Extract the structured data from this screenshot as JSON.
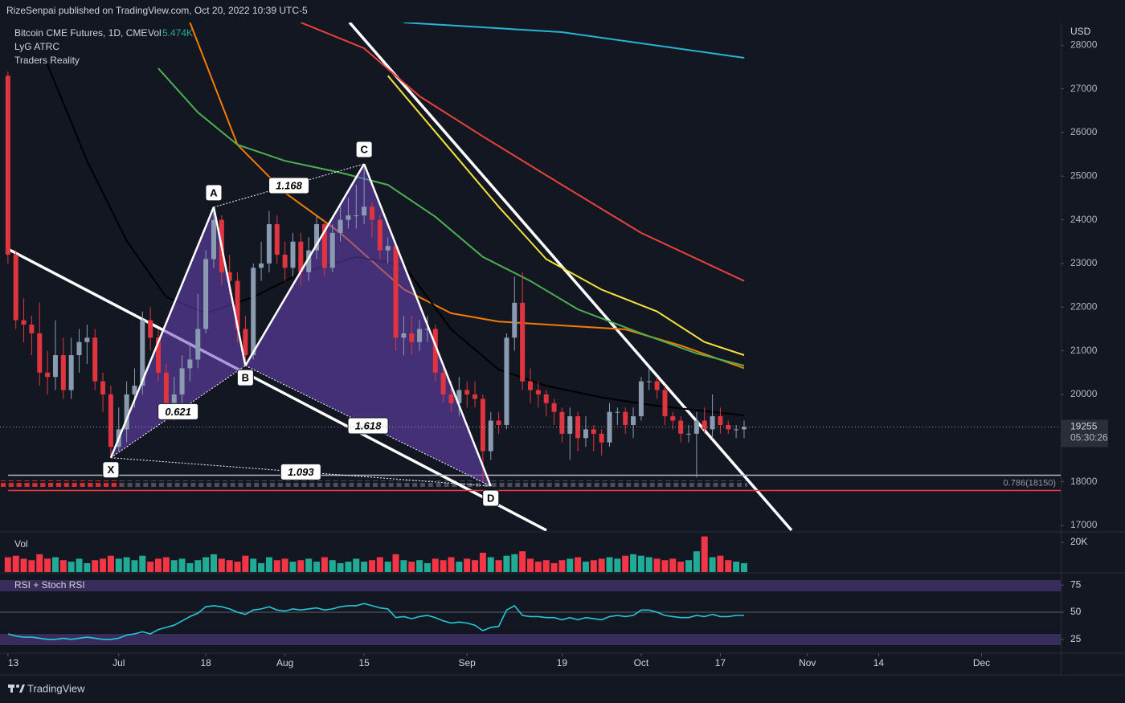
{
  "chart_data": {
    "type": "candlestick",
    "published": "RizeSenpai published on TradingView.com, Oct 20, 2022 10:39 UTC-5",
    "title": "Bitcoin CME Futures, 1D, CME",
    "volume_title": "Vol",
    "volume_last": "5.474K",
    "indicators": [
      "LyG ATRC",
      "Traders Reality"
    ],
    "currency": "USD",
    "countdown": "05:30:26",
    "brand": "TradingView",
    "up_color": "#8a9bb0",
    "down_color": "#e0353f",
    "volume_up_color": "#22ab94",
    "volume_down_color": "#f23645",
    "grid": false,
    "xlim": [
      -1,
      133
    ],
    "xticks": [
      {
        "value": 0,
        "label": "13"
      },
      {
        "value": 14,
        "label": "Jul"
      },
      {
        "value": 25,
        "label": "18"
      },
      {
        "value": 35,
        "label": "Aug"
      },
      {
        "value": 45,
        "label": "15"
      },
      {
        "value": 58,
        "label": "Sep"
      },
      {
        "value": 70,
        "label": "19"
      },
      {
        "value": 80,
        "label": "Oct"
      },
      {
        "value": 90,
        "label": "17"
      },
      {
        "value": 101,
        "label": "Nov"
      },
      {
        "value": 110,
        "label": "14"
      },
      {
        "value": 123,
        "label": "Dec"
      }
    ],
    "ylim": [
      16870,
      28520
    ],
    "yticks": [
      17000,
      18000,
      19000,
      20000,
      21000,
      22000,
      23000,
      24000,
      25000,
      26000,
      27000,
      28000
    ],
    "x": [
      0,
      1,
      2,
      3,
      4,
      5,
      6,
      7,
      8,
      9,
      10,
      11,
      12,
      13,
      14,
      15,
      16,
      17,
      18,
      19,
      20,
      21,
      22,
      23,
      24,
      25,
      26,
      27,
      28,
      29,
      30,
      31,
      32,
      33,
      34,
      35,
      36,
      37,
      38,
      39,
      40,
      41,
      42,
      43,
      44,
      45,
      46,
      47,
      48,
      49,
      50,
      51,
      52,
      53,
      54,
      55,
      56,
      57,
      58,
      59,
      60,
      61,
      62,
      63,
      64,
      65,
      66,
      67,
      68,
      69,
      70,
      71,
      72,
      73,
      74,
      75,
      76,
      77,
      78,
      79,
      80,
      81,
      82,
      83,
      84,
      85,
      86,
      87,
      88,
      89,
      90,
      91,
      92,
      93
    ],
    "open": [
      27300,
      23200,
      21700,
      21600,
      21400,
      20500,
      20400,
      20900,
      20100,
      20900,
      21200,
      21300,
      20300,
      20000,
      18800,
      19200,
      20000,
      20200,
      21700,
      21300,
      20500,
      19800,
      20000,
      20600,
      20800,
      21500,
      23100,
      24000,
      22800,
      22600,
      21500,
      20900,
      22900,
      23000,
      23900,
      23200,
      22900,
      23500,
      22800,
      23300,
      23900,
      22900,
      23700,
      24000,
      24100,
      24100,
      24300,
      24000,
      23300,
      23400,
      21300,
      21400,
      21200,
      21500,
      21500,
      20500,
      20000,
      19800,
      20100,
      20000,
      19900,
      18700,
      19400,
      19300,
      21300,
      22100,
      20300,
      20100,
      20000,
      19800,
      19600,
      19100,
      19500,
      19000,
      19200,
      19100,
      18900,
      19600,
      19600,
      19300,
      19500,
      20300,
      20300,
      20100,
      19500,
      19400,
      19100,
      19100,
      19400,
      19200,
      19500,
      19300,
      19200,
      19200
    ],
    "high": [
      27400,
      23300,
      22200,
      21800,
      22100,
      21000,
      21700,
      21300,
      21300,
      21500,
      21600,
      21500,
      20500,
      20200,
      19700,
      20300,
      20600,
      21900,
      22000,
      21500,
      20700,
      20400,
      20900,
      21200,
      22300,
      23300,
      24300,
      24100,
      23200,
      22800,
      21800,
      23000,
      23500,
      24200,
      24100,
      23500,
      23700,
      23700,
      23600,
      24100,
      24000,
      23900,
      24300,
      24500,
      24800,
      25200,
      24400,
      24100,
      23600,
      23500,
      21800,
      21800,
      21700,
      21800,
      21600,
      20600,
      20300,
      20400,
      20300,
      20300,
      20000,
      19600,
      19600,
      21400,
      22700,
      22800,
      20600,
      20300,
      20100,
      19900,
      19700,
      19700,
      19600,
      19500,
      19300,
      19200,
      19800,
      19700,
      19700,
      19700,
      20400,
      20600,
      20400,
      20200,
      19600,
      19500,
      19300,
      19600,
      19700,
      20000,
      19700,
      19400,
      19300,
      19400
    ],
    "low": [
      23000,
      21500,
      21200,
      20900,
      20200,
      20000,
      20100,
      19900,
      19900,
      20500,
      20700,
      20100,
      19600,
      18600,
      18700,
      18900,
      19700,
      20000,
      21000,
      20300,
      19500,
      19400,
      19800,
      20300,
      20600,
      21400,
      22900,
      22500,
      22300,
      21200,
      20700,
      20800,
      22600,
      22800,
      23000,
      22600,
      22700,
      22500,
      22600,
      23100,
      22700,
      22800,
      23500,
      23800,
      23800,
      23900,
      23600,
      23100,
      23000,
      21000,
      20900,
      20900,
      21000,
      21200,
      20300,
      19800,
      19600,
      19500,
      19700,
      19700,
      18000,
      18500,
      19100,
      19200,
      21000,
      20100,
      19800,
      19700,
      19500,
      19300,
      18900,
      18500,
      18700,
      18800,
      18700,
      18600,
      18800,
      19300,
      19100,
      19000,
      19400,
      20100,
      19900,
      19300,
      19200,
      18900,
      18900,
      18100,
      19100,
      19000,
      19100,
      19100,
      19000,
      19000
    ],
    "close": [
      23200,
      21700,
      21600,
      21400,
      20500,
      20400,
      20900,
      20100,
      20900,
      21200,
      21300,
      20300,
      20000,
      18800,
      19200,
      20000,
      20200,
      21700,
      21300,
      20500,
      19800,
      20000,
      20600,
      20800,
      21500,
      23100,
      24000,
      22800,
      22600,
      21500,
      20900,
      22900,
      23000,
      23900,
      23200,
      22900,
      23500,
      22800,
      23300,
      23900,
      22900,
      23700,
      24000,
      24100,
      24100,
      24300,
      24000,
      23300,
      23400,
      21300,
      21400,
      21200,
      21500,
      21500,
      20500,
      20000,
      19800,
      20100,
      20000,
      19900,
      18700,
      19400,
      19300,
      21300,
      22100,
      20300,
      20100,
      20000,
      19800,
      19600,
      19100,
      19500,
      19000,
      19200,
      19100,
      18900,
      19600,
      19600,
      19300,
      19500,
      20300,
      20300,
      20100,
      19500,
      19400,
      19100,
      19100,
      19400,
      19200,
      19500,
      19300,
      19200,
      19200,
      19255
    ],
    "volume": [
      10000,
      11000,
      9000,
      8000,
      12000,
      9000,
      10000,
      8000,
      7000,
      9000,
      6000,
      8000,
      9000,
      11000,
      9000,
      10000,
      8000,
      11000,
      7000,
      9000,
      10000,
      8000,
      9000,
      6000,
      8000,
      10000,
      12000,
      9000,
      8000,
      7000,
      11000,
      9000,
      6000,
      10000,
      8000,
      9000,
      7000,
      8000,
      9000,
      7000,
      10000,
      8000,
      6000,
      7000,
      9000,
      7000,
      8000,
      10000,
      7000,
      12000,
      8000,
      7000,
      8000,
      6000,
      9000,
      8000,
      10000,
      7000,
      9000,
      8000,
      13000,
      10000,
      8000,
      11000,
      12000,
      14000,
      9000,
      7000,
      8000,
      6000,
      8000,
      9000,
      10000,
      7000,
      8000,
      9000,
      10000,
      9000,
      11000,
      12000,
      11000,
      10000,
      9000,
      8000,
      9000,
      7000,
      8000,
      14000,
      24000,
      10000,
      11000,
      8000,
      7000,
      6000
    ],
    "volume_ylim": [
      0,
      26000
    ],
    "volume_ticks": [
      {
        "value": 20000,
        "label": "20K"
      }
    ],
    "rsi": {
      "title": "RSI + Stoch RSI",
      "color": "#26c6da",
      "ylim": [
        13,
        85.5
      ],
      "yticks": [
        25,
        50,
        75
      ],
      "values": [
        30,
        28,
        27,
        27,
        26,
        25,
        25,
        26,
        25,
        26,
        27,
        26,
        25,
        25,
        26,
        29,
        30,
        32,
        30,
        34,
        36,
        38,
        42,
        46,
        49,
        55,
        56,
        55,
        53,
        50,
        48,
        52,
        53,
        55,
        52,
        51,
        53,
        52,
        53,
        54,
        52,
        53,
        55,
        56,
        56,
        58,
        56,
        54,
        53,
        45,
        46,
        44,
        46,
        47,
        45,
        42,
        40,
        41,
        40,
        38,
        33,
        36,
        37,
        52,
        56,
        47,
        46,
        46,
        45,
        45,
        43,
        45,
        43,
        45,
        44,
        43,
        46,
        47,
        46,
        47,
        52,
        52,
        50,
        47,
        46,
        45,
        45,
        47,
        46,
        48,
        46,
        46,
        47,
        47
      ]
    },
    "averages": [
      {
        "color": "#26b5d4",
        "x": [
          50,
          70,
          93
        ],
        "values": [
          28520,
          28300,
          27710
        ]
      },
      {
        "color": "#e8433a",
        "x": [
          37,
          45,
          52,
          60,
          70,
          80,
          93
        ],
        "values": [
          28520,
          27930,
          26830,
          25910,
          24800,
          23700,
          22600
        ]
      },
      {
        "color": "#f5e23b",
        "x": [
          48,
          55,
          62,
          68,
          75,
          82,
          88,
          93
        ],
        "values": [
          27300,
          25800,
          24300,
          23100,
          22400,
          21900,
          21200,
          20900
        ]
      },
      {
        "color": "#f57c00",
        "x": [
          23,
          29,
          35,
          42,
          50,
          56,
          62,
          70,
          78,
          85,
          93
        ],
        "values": [
          28520,
          25720,
          24620,
          23700,
          22410,
          21860,
          21670,
          21580,
          21490,
          21120,
          20600
        ]
      },
      {
        "color": "#4caf50",
        "x": [
          19,
          24,
          29,
          35,
          42,
          48,
          54,
          60,
          66,
          72,
          80,
          87,
          93
        ],
        "values": [
          27470,
          26460,
          25720,
          25350,
          25080,
          24800,
          24070,
          23150,
          22600,
          21950,
          21400,
          20940,
          20660
        ]
      },
      {
        "color": "#000000",
        "x": [
          5,
          10,
          15,
          20,
          25,
          31,
          37,
          44,
          50,
          56,
          62,
          68,
          75,
          82,
          93
        ],
        "values": [
          27560,
          25350,
          23520,
          22230,
          21860,
          22230,
          22780,
          23150,
          22960,
          21490,
          20570,
          20200,
          19930,
          19740,
          19520
        ]
      }
    ],
    "pattern": {
      "points": [
        {
          "label": "X",
          "x": 13,
          "y": 18550
        },
        {
          "label": "A",
          "x": 26,
          "y": 24290
        },
        {
          "label": "B",
          "x": 30,
          "y": 20660
        },
        {
          "label": "C",
          "x": 45,
          "y": 25280
        },
        {
          "label": "D",
          "x": 61,
          "y": 17900
        }
      ],
      "ratios": [
        "0.621",
        "1.168",
        "1.618",
        "1.093"
      ]
    },
    "levels": [
      {
        "value": 18150,
        "color": "#b2b5be"
      },
      {
        "value": 17800,
        "color": "#f23645"
      }
    ],
    "fib_label": "0.786(18150)"
  }
}
